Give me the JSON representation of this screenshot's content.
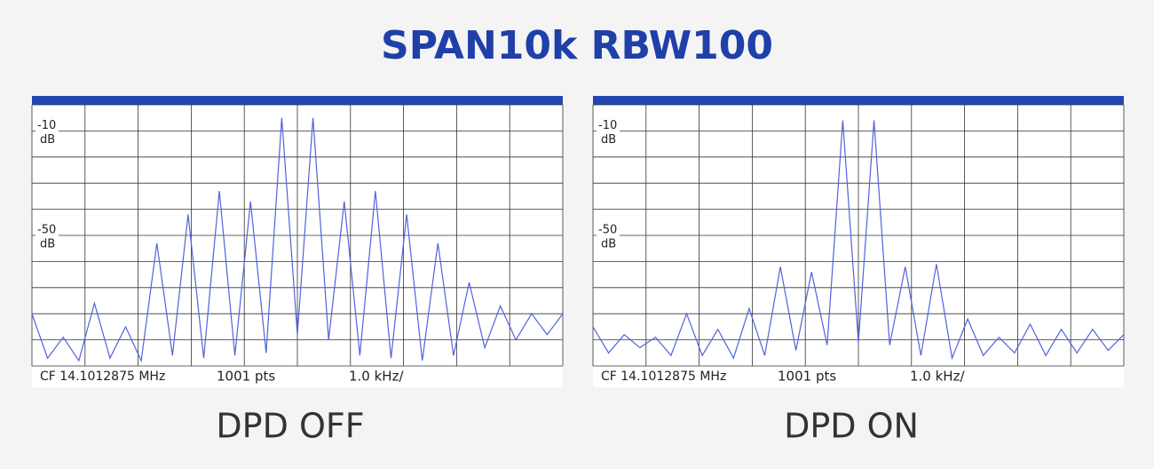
{
  "title": "SPAN10k RBW100",
  "chart_data": [
    {
      "type": "line",
      "label": "DPD OFF",
      "cf": "CF 14.1012875 MHz",
      "points": "1001 pts",
      "scale": "1.0 kHz/",
      "ylim": [
        -100,
        0
      ],
      "yticks": [
        -10,
        -50
      ],
      "y_unit": "dB",
      "ygrid": [
        0,
        -10,
        -20,
        -30,
        -40,
        -50,
        -60,
        -70,
        -80,
        -90,
        -100
      ],
      "xdivisions": 10,
      "series": [
        {
          "color": "#4f63dc",
          "values": [
            -80,
            -97,
            -89,
            -98,
            -76,
            -97,
            -85,
            -98,
            -53,
            -96,
            -42,
            -97,
            -33,
            -96,
            -37,
            -95,
            -5,
            -88,
            -5,
            -90,
            -37,
            -96,
            -33,
            -97,
            -42,
            -98,
            -53,
            -96,
            -68,
            -93,
            -77,
            -90,
            -80,
            -88,
            -80
          ]
        }
      ]
    },
    {
      "type": "line",
      "label": "DPD ON",
      "cf": "CF 14.1012875 MHz",
      "points": "1001 pts",
      "scale": "1.0 kHz/",
      "ylim": [
        -100,
        0
      ],
      "yticks": [
        -10,
        -50
      ],
      "y_unit": "dB",
      "ygrid": [
        0,
        -10,
        -20,
        -30,
        -40,
        -50,
        -60,
        -70,
        -80,
        -90,
        -100
      ],
      "xdivisions": 10,
      "series": [
        {
          "color": "#4f63dc",
          "values": [
            -85,
            -95,
            -88,
            -93,
            -89,
            -96,
            -80,
            -96,
            -86,
            -97,
            -78,
            -96,
            -62,
            -94,
            -64,
            -92,
            -6,
            -91,
            -6,
            -92,
            -62,
            -96,
            -61,
            -97,
            -82,
            -96,
            -89,
            -95,
            -84,
            -96,
            -86,
            -95,
            -86,
            -94,
            -88
          ]
        }
      ]
    }
  ]
}
